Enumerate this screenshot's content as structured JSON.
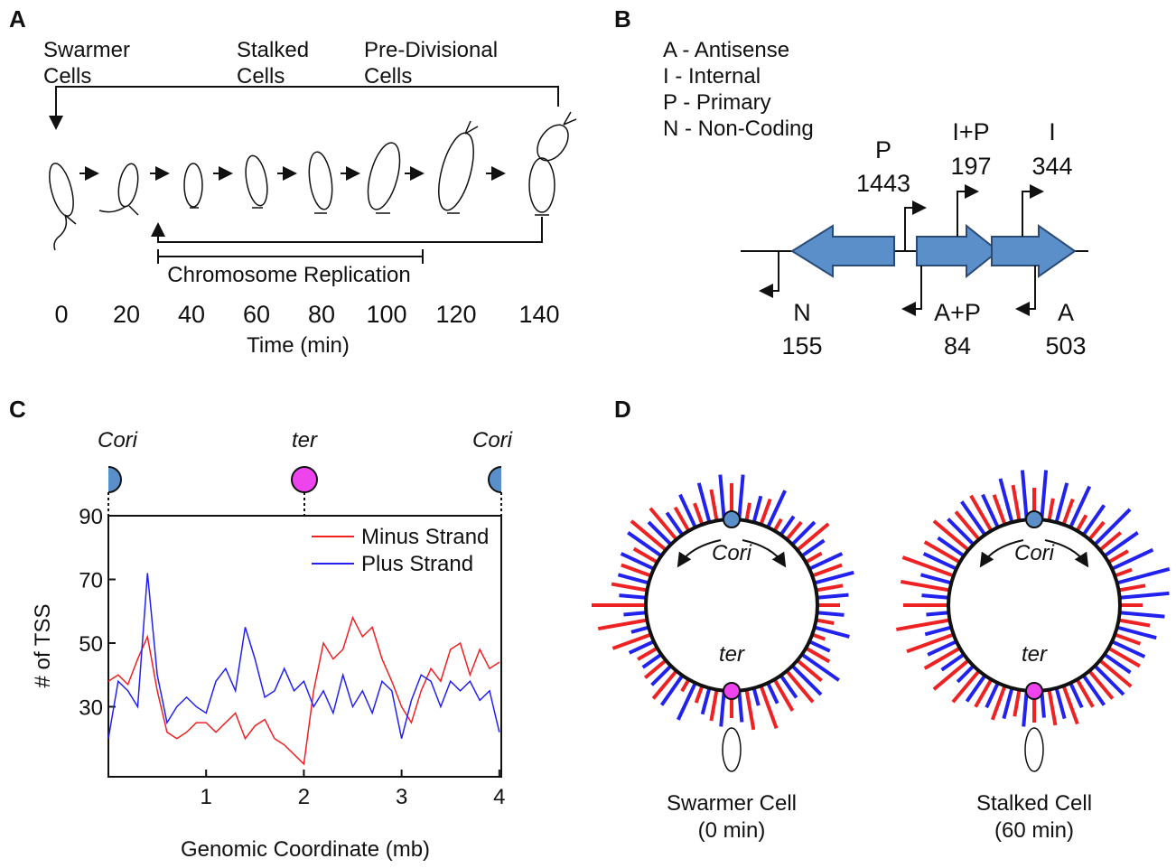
{
  "panel_a": {
    "letter": "A",
    "stages": [
      [
        "Swarmer",
        "Cells"
      ],
      [
        "Stalked",
        "Cells"
      ],
      [
        "Pre-Divisional",
        "Cells"
      ]
    ],
    "times": [
      0,
      20,
      40,
      60,
      80,
      100,
      120,
      140
    ],
    "replication_label": "Chromosome Replication",
    "time_label": "Time (min)"
  },
  "panel_b": {
    "letter": "B",
    "legend": [
      "A - Antisense",
      "I - Internal",
      "P - Primary",
      "N - Non-Coding"
    ],
    "tss": [
      {
        "label": "P",
        "count": 1443
      },
      {
        "label": "I+P",
        "count": 197
      },
      {
        "label": "I",
        "count": 344
      },
      {
        "label": "N",
        "count": 155
      },
      {
        "label": "A+P",
        "count": 84
      },
      {
        "label": "A",
        "count": 503
      }
    ]
  },
  "panel_c": {
    "letter": "C",
    "markers": [
      "Cori",
      "ter",
      "Cori"
    ]
  },
  "chart_data": {
    "type": "line",
    "xlabel": "Genomic Coordinate (mb)",
    "ylabel": "# of TSS",
    "x": [
      0,
      0.1,
      0.2,
      0.3,
      0.4,
      0.5,
      0.6,
      0.7,
      0.8,
      0.9,
      1.0,
      1.1,
      1.2,
      1.3,
      1.4,
      1.5,
      1.6,
      1.7,
      1.8,
      1.9,
      2.0,
      2.1,
      2.2,
      2.3,
      2.4,
      2.5,
      2.6,
      2.7,
      2.8,
      2.9,
      3.0,
      3.1,
      3.2,
      3.3,
      3.4,
      3.5,
      3.6,
      3.7,
      3.8,
      3.9,
      4.0
    ],
    "series": [
      {
        "name": "Minus Strand",
        "color": "#ee2222",
        "values": [
          38,
          40,
          37,
          45,
          52,
          35,
          22,
          20,
          22,
          25,
          25,
          22,
          25,
          28,
          20,
          24,
          26,
          20,
          18,
          15,
          12,
          35,
          50,
          45,
          48,
          58,
          52,
          55,
          45,
          38,
          30,
          25,
          35,
          42,
          38,
          48,
          50,
          40,
          48,
          42,
          44
        ]
      },
      {
        "name": "Plus Strand",
        "color": "#2222ee",
        "values": [
          20,
          38,
          35,
          30,
          72,
          40,
          25,
          30,
          33,
          30,
          28,
          38,
          42,
          35,
          55,
          45,
          33,
          35,
          42,
          35,
          38,
          30,
          35,
          28,
          40,
          30,
          35,
          28,
          38,
          35,
          20,
          32,
          40,
          38,
          30,
          38,
          35,
          38,
          32,
          35,
          22
        ]
      }
    ],
    "xlim": [
      0,
      4.02
    ],
    "ylim": [
      8,
      90
    ],
    "xticks": [
      1,
      2,
      3,
      4
    ],
    "yticks": [
      30,
      50,
      70,
      90
    ],
    "legend": "upper right"
  },
  "panel_d": {
    "letter": "D",
    "origin": "Cori",
    "terminus": "ter",
    "cells": [
      {
        "caption": [
          "Swarmer Cell",
          "(0 min)"
        ],
        "minus": [
          40,
          20,
          30,
          15,
          25,
          45,
          20,
          35,
          30,
          25,
          20,
          15,
          30,
          35,
          45,
          40,
          50,
          45,
          30,
          35,
          20,
          15,
          40,
          30,
          25,
          45,
          55,
          60,
          40,
          35,
          30,
          50,
          45,
          30,
          25,
          35
        ],
        "plus": [
          50,
          30,
          45,
          25,
          35,
          30,
          40,
          45,
          35,
          30,
          40,
          25,
          50,
          45,
          30,
          25,
          20,
          35,
          40,
          30,
          45,
          40,
          30,
          25,
          30,
          20,
          25,
          30,
          35,
          40,
          45,
          35,
          30,
          40,
          45,
          50
        ]
      },
      {
        "caption": [
          "Stalked Cell",
          "(60 min)"
        ],
        "minus": [
          35,
          25,
          30,
          20,
          25,
          30,
          25,
          20,
          30,
          25,
          35,
          30,
          40,
          45,
          40,
          35,
          45,
          40,
          35,
          30,
          40,
          35,
          45,
          50,
          45,
          55,
          60,
          50,
          55,
          60,
          45,
          50,
          40,
          45,
          35,
          40
        ],
        "plus": [
          55,
          45,
          50,
          40,
          55,
          45,
          50,
          60,
          55,
          50,
          45,
          40,
          35,
          45,
          40,
          30,
          35,
          30,
          40,
          35,
          30,
          35,
          25,
          30,
          35,
          30,
          25,
          30,
          35,
          40,
          35,
          40,
          45,
          40,
          50,
          55
        ]
      }
    ]
  }
}
